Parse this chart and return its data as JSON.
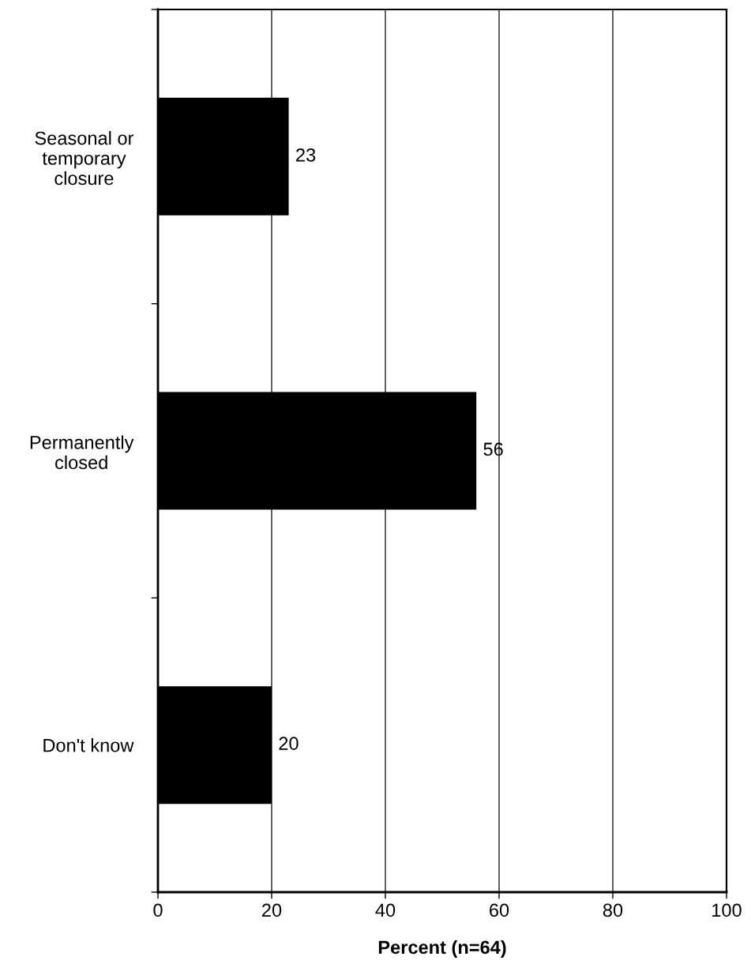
{
  "chart_data": {
    "type": "bar",
    "orientation": "horizontal",
    "categories": [
      "Seasonal or\ntemporary\nclosure",
      "Permanently\nclosed",
      "Don't know"
    ],
    "values": [
      23,
      56,
      20
    ],
    "color": "#000000",
    "xlabel": "Percent (n=64)",
    "xlim": [
      0,
      100
    ],
    "xticks": [
      0,
      20,
      40,
      60,
      80,
      100
    ],
    "grid": "x",
    "data_labels": true
  }
}
